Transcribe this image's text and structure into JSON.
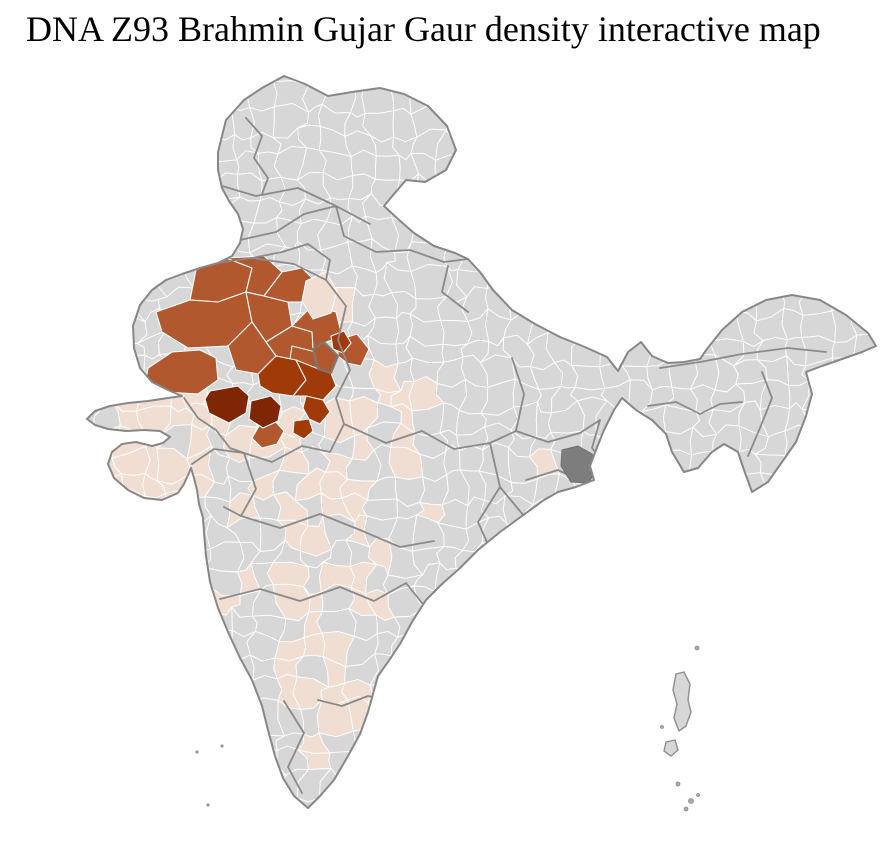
{
  "page": {
    "title": "DNA Z93 Brahmin Gujar Gaur density interactive map",
    "background_color": "#ffffff",
    "title_color": "#000000"
  },
  "map": {
    "type": "choropleth-district-map",
    "colors": {
      "base_district": "#d7d7d7",
      "district_border": "#ffffff",
      "state_border": "#8a8a8a",
      "country_border": "#878787",
      "special_area_dark": "#7d7d7d",
      "island_fill": "#d7d7d7",
      "island_border": "#8f8f8f"
    },
    "density_scale": [
      {
        "level": "no_data",
        "color": "#d7d7d7"
      },
      {
        "level": "low",
        "color": "#f1ded3"
      },
      {
        "level": "medium",
        "color": "#b2582f"
      },
      {
        "level": "high",
        "color": "#a03a08"
      },
      {
        "level": "highest",
        "color": "#7f2604"
      }
    ]
  }
}
